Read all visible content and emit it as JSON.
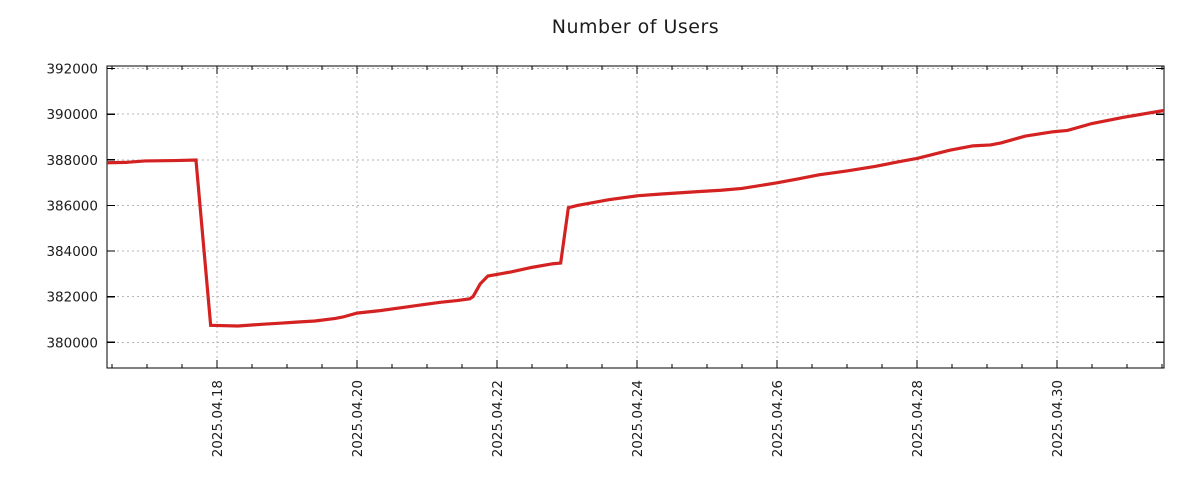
{
  "chart_data": {
    "type": "line",
    "title": "Number of Users",
    "grid": {
      "visible": true,
      "style": "dotted",
      "color": "#b5b5b5"
    },
    "legend": {
      "visible": false
    },
    "colors": {
      "line": "#d42121",
      "border": "#000000",
      "text": "#1c1c1c",
      "background": "#ffffff"
    },
    "x_axis": {
      "label": "",
      "tick_labels": [
        "2025.04.18",
        "2025.04.20",
        "2025.04.22",
        "2025.04.24",
        "2025.04.26",
        "2025.04.28",
        "2025.04.30"
      ],
      "tick_days": [
        0,
        2,
        4,
        6,
        8,
        10,
        12
      ],
      "minor_tick_step_days": 0.5,
      "domain_days": [
        -1.571,
        13.529
      ],
      "labels_rotated_degrees": -90
    },
    "y_axis": {
      "label": "",
      "ticks": [
        380000,
        382000,
        384000,
        386000,
        388000,
        390000,
        392000
      ],
      "tick_labels": [
        "380000",
        "382000",
        "384000",
        "386000",
        "388000",
        "390000",
        "392000"
      ],
      "domain": [
        378875,
        392110
      ]
    },
    "series": [
      {
        "name": "Number of Users",
        "color": "#d42121",
        "points_day_value": [
          [
            -1.57,
            387870
          ],
          [
            -1.3,
            387885
          ],
          [
            -1.03,
            387950
          ],
          [
            -0.6,
            387965
          ],
          [
            -0.3,
            387990
          ],
          [
            -0.09,
            380745
          ],
          [
            0.3,
            380715
          ],
          [
            0.64,
            380790
          ],
          [
            0.93,
            380845
          ],
          [
            1.16,
            380890
          ],
          [
            1.4,
            380935
          ],
          [
            1.69,
            381045
          ],
          [
            1.8,
            381110
          ],
          [
            2.0,
            381280
          ],
          [
            2.33,
            381390
          ],
          [
            2.66,
            381530
          ],
          [
            2.94,
            381650
          ],
          [
            3.19,
            381755
          ],
          [
            3.43,
            381830
          ],
          [
            3.61,
            381905
          ],
          [
            3.66,
            382010
          ],
          [
            3.76,
            382560
          ],
          [
            3.87,
            382905
          ],
          [
            4.0,
            382975
          ],
          [
            4.2,
            383085
          ],
          [
            4.5,
            383285
          ],
          [
            4.8,
            383445
          ],
          [
            4.91,
            383475
          ],
          [
            5.02,
            385900
          ],
          [
            5.15,
            386000
          ],
          [
            5.6,
            386250
          ],
          [
            6.0,
            386420
          ],
          [
            6.35,
            386500
          ],
          [
            6.9,
            386610
          ],
          [
            7.2,
            386665
          ],
          [
            7.5,
            386745
          ],
          [
            8.0,
            386990
          ],
          [
            8.3,
            387160
          ],
          [
            8.6,
            387340
          ],
          [
            9.0,
            387510
          ],
          [
            9.4,
            387710
          ],
          [
            9.8,
            387950
          ],
          [
            10.0,
            388060
          ],
          [
            10.47,
            388420
          ],
          [
            10.8,
            388610
          ],
          [
            11.05,
            388650
          ],
          [
            11.2,
            388740
          ],
          [
            11.55,
            389040
          ],
          [
            11.95,
            389230
          ],
          [
            12.15,
            389285
          ],
          [
            12.5,
            389590
          ],
          [
            12.95,
            389860
          ],
          [
            13.2,
            389990
          ],
          [
            13.53,
            390160
          ]
        ]
      }
    ]
  }
}
